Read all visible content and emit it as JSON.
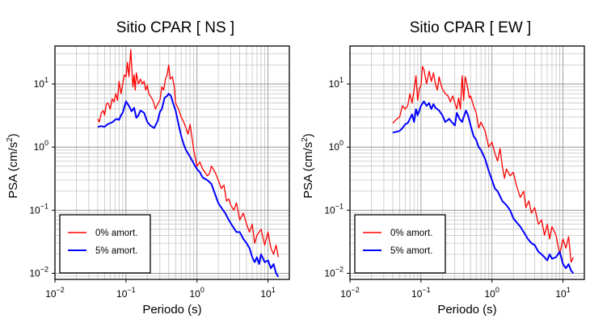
{
  "chart_data": [
    {
      "type": "line",
      "title": "Sitio CPAR [ NS ]",
      "xlabel": "Periodo (s)",
      "ylabel_main": "PSA (cm/s",
      "ylabel_sup": "2",
      "ylabel_tail": ")",
      "xscale": "log",
      "yscale": "log",
      "xlim": [
        0.01,
        20
      ],
      "ylim": [
        0.008,
        40
      ],
      "grid": true,
      "legend_placement": "bottom-left",
      "xticks": [
        {
          "value": 0.01,
          "base": "10",
          "exp": "−2"
        },
        {
          "value": 0.1,
          "base": "10",
          "exp": "−1"
        },
        {
          "value": 1,
          "base": "10",
          "exp": "0"
        },
        {
          "value": 10,
          "base": "10",
          "exp": "1"
        }
      ],
      "yticks": [
        {
          "value": 0.01,
          "base": "10",
          "exp": "−2"
        },
        {
          "value": 0.1,
          "base": "10",
          "exp": "−1"
        },
        {
          "value": 1,
          "base": "10",
          "exp": "0"
        },
        {
          "value": 10,
          "base": "10",
          "exp": "1"
        }
      ],
      "series": [
        {
          "name": "0% amort.",
          "color": "#ff0000",
          "x": [
            0.04,
            0.042,
            0.045,
            0.048,
            0.05,
            0.053,
            0.056,
            0.06,
            0.064,
            0.068,
            0.072,
            0.076,
            0.08,
            0.085,
            0.09,
            0.095,
            0.1,
            0.105,
            0.11,
            0.117,
            0.125,
            0.13,
            0.135,
            0.14,
            0.15,
            0.16,
            0.17,
            0.18,
            0.19,
            0.2,
            0.21,
            0.22,
            0.24,
            0.26,
            0.28,
            0.3,
            0.32,
            0.34,
            0.36,
            0.38,
            0.4,
            0.42,
            0.45,
            0.48,
            0.5,
            0.55,
            0.6,
            0.65,
            0.7,
            0.75,
            0.8,
            0.9,
            1.0,
            1.1,
            1.2,
            1.3,
            1.4,
            1.5,
            1.6,
            1.8,
            2.0,
            2.2,
            2.4,
            2.6,
            2.8,
            3.0,
            3.3,
            3.6,
            4.0,
            4.5,
            5.0,
            5.5,
            6.0,
            6.5,
            7.0,
            8.0,
            9.0,
            10.0,
            11.0,
            12.0,
            13.0,
            14.0
          ],
          "y": [
            2.8,
            2.5,
            3.5,
            3.8,
            3.2,
            4.8,
            5.0,
            4.0,
            5.8,
            5.2,
            7.0,
            5.5,
            11.0,
            7.0,
            10.0,
            14.0,
            13.0,
            22.0,
            13.0,
            35.0,
            9.0,
            14.0,
            8.0,
            15.0,
            10.0,
            12.0,
            10.0,
            11.0,
            8.0,
            9.5,
            7.0,
            6.5,
            5.5,
            4.0,
            4.8,
            5.5,
            9.0,
            8.0,
            12.0,
            14.0,
            20.0,
            12.0,
            13.0,
            9.0,
            5.0,
            4.0,
            3.0,
            2.5,
            2.0,
            1.6,
            2.3,
            0.9,
            0.5,
            0.58,
            0.45,
            0.4,
            0.35,
            0.38,
            0.5,
            0.4,
            0.3,
            0.22,
            0.25,
            0.14,
            0.15,
            0.12,
            0.1,
            0.13,
            0.07,
            0.09,
            0.06,
            0.045,
            0.06,
            0.03,
            0.04,
            0.05,
            0.028,
            0.045,
            0.025,
            0.02,
            0.028,
            0.018
          ]
        },
        {
          "name": "5% amort.",
          "color": "#0000ff",
          "x": [
            0.04,
            0.045,
            0.05,
            0.055,
            0.06,
            0.065,
            0.07,
            0.075,
            0.08,
            0.085,
            0.09,
            0.1,
            0.11,
            0.12,
            0.13,
            0.14,
            0.15,
            0.16,
            0.18,
            0.2,
            0.22,
            0.25,
            0.28,
            0.3,
            0.32,
            0.35,
            0.38,
            0.4,
            0.43,
            0.46,
            0.5,
            0.55,
            0.6,
            0.65,
            0.7,
            0.8,
            0.9,
            1.0,
            1.1,
            1.2,
            1.4,
            1.6,
            1.8,
            2.0,
            2.2,
            2.5,
            2.8,
            3.2,
            3.6,
            4.0,
            4.5,
            5.0,
            5.5,
            6.0,
            6.5,
            7.0,
            7.5,
            8.0,
            9.0,
            10.0,
            11.0,
            12.0,
            13.0,
            14.0
          ],
          "y": [
            2.1,
            2.15,
            2.1,
            2.3,
            2.4,
            2.5,
            2.7,
            2.8,
            2.7,
            3.2,
            3.5,
            5.3,
            4.5,
            3.7,
            4.2,
            2.9,
            3.2,
            3.8,
            3.5,
            2.5,
            2.2,
            2.0,
            2.6,
            3.6,
            4.0,
            6.0,
            6.5,
            7.0,
            6.5,
            5.0,
            3.8,
            2.3,
            1.5,
            1.1,
            0.9,
            0.7,
            0.55,
            0.45,
            0.4,
            0.33,
            0.3,
            0.26,
            0.18,
            0.13,
            0.11,
            0.09,
            0.07,
            0.055,
            0.045,
            0.045,
            0.035,
            0.03,
            0.025,
            0.018,
            0.015,
            0.018,
            0.014,
            0.02,
            0.015,
            0.016,
            0.012,
            0.014,
            0.01,
            0.0088
          ]
        }
      ]
    },
    {
      "type": "line",
      "title": "Sitio CPAR [ EW ]",
      "xlabel": "Periodo (s)",
      "ylabel_main": "PSA (cm/s",
      "ylabel_sup": "2",
      "ylabel_tail": ")",
      "xscale": "log",
      "yscale": "log",
      "xlim": [
        0.01,
        20
      ],
      "ylim": [
        0.008,
        40
      ],
      "grid": true,
      "legend_placement": "bottom-left",
      "xticks": [
        {
          "value": 0.01,
          "base": "10",
          "exp": "−2"
        },
        {
          "value": 0.1,
          "base": "10",
          "exp": "−1"
        },
        {
          "value": 1,
          "base": "10",
          "exp": "0"
        },
        {
          "value": 10,
          "base": "10",
          "exp": "1"
        }
      ],
      "yticks": [
        {
          "value": 0.01,
          "base": "10",
          "exp": "−2"
        },
        {
          "value": 0.1,
          "base": "10",
          "exp": "−1"
        },
        {
          "value": 1,
          "base": "10",
          "exp": "0"
        },
        {
          "value": 10,
          "base": "10",
          "exp": "1"
        }
      ],
      "series": [
        {
          "name": "0% amort.",
          "color": "#ff0000",
          "x": [
            0.04,
            0.043,
            0.046,
            0.05,
            0.055,
            0.06,
            0.065,
            0.07,
            0.075,
            0.08,
            0.085,
            0.09,
            0.095,
            0.1,
            0.105,
            0.11,
            0.12,
            0.13,
            0.14,
            0.15,
            0.16,
            0.17,
            0.18,
            0.19,
            0.2,
            0.22,
            0.24,
            0.26,
            0.28,
            0.3,
            0.32,
            0.34,
            0.36,
            0.38,
            0.4,
            0.42,
            0.44,
            0.46,
            0.48,
            0.5,
            0.55,
            0.6,
            0.65,
            0.7,
            0.8,
            0.9,
            1.0,
            1.1,
            1.2,
            1.3,
            1.4,
            1.5,
            1.6,
            1.8,
            2.0,
            2.2,
            2.5,
            2.8,
            3.0,
            3.3,
            3.6,
            4.0,
            4.5,
            5.0,
            5.5,
            6.0,
            6.5,
            7.0,
            8.0,
            9.0,
            10.0,
            11.0,
            12.0,
            13.0,
            14.0
          ],
          "y": [
            2.4,
            2.6,
            2.8,
            3.0,
            4.5,
            4.0,
            4.5,
            7.0,
            5.0,
            8.0,
            13.5,
            5.5,
            8.5,
            9.5,
            19.0,
            17.0,
            10.0,
            16.0,
            11.0,
            15.0,
            10.0,
            8.0,
            13.0,
            10.0,
            8.5,
            7.0,
            6.5,
            5.2,
            6.5,
            5.0,
            4.0,
            6.0,
            4.0,
            13.5,
            5.5,
            13.0,
            10.5,
            8.0,
            6.0,
            6.5,
            4.5,
            3.5,
            2.0,
            2.5,
            1.8,
            1.0,
            1.2,
            0.8,
            0.6,
            0.95,
            0.5,
            0.32,
            0.45,
            0.35,
            0.4,
            0.25,
            0.16,
            0.2,
            0.11,
            0.14,
            0.09,
            0.11,
            0.06,
            0.07,
            0.04,
            0.06,
            0.035,
            0.055,
            0.04,
            0.02,
            0.035,
            0.025,
            0.038,
            0.015,
            0.018
          ]
        },
        {
          "name": "5% amort.",
          "color": "#0000ff",
          "x": [
            0.04,
            0.045,
            0.05,
            0.055,
            0.06,
            0.065,
            0.07,
            0.075,
            0.08,
            0.085,
            0.09,
            0.1,
            0.11,
            0.12,
            0.13,
            0.14,
            0.15,
            0.16,
            0.18,
            0.2,
            0.22,
            0.25,
            0.28,
            0.3,
            0.32,
            0.35,
            0.38,
            0.4,
            0.43,
            0.46,
            0.5,
            0.55,
            0.6,
            0.65,
            0.7,
            0.8,
            0.9,
            1.0,
            1.1,
            1.2,
            1.4,
            1.6,
            1.8,
            2.0,
            2.2,
            2.5,
            2.8,
            3.2,
            3.6,
            4.0,
            4.5,
            5.0,
            5.5,
            6.0,
            6.5,
            7.0,
            8.0,
            9.0,
            10.0,
            11.0,
            12.0,
            13.0,
            14.0
          ],
          "y": [
            1.7,
            1.75,
            1.8,
            2.0,
            2.3,
            2.4,
            2.8,
            3.3,
            2.5,
            4.0,
            3.2,
            4.5,
            5.3,
            4.5,
            5.0,
            4.0,
            4.8,
            4.2,
            3.8,
            3.2,
            2.5,
            2.8,
            2.4,
            2.2,
            3.5,
            2.8,
            2.5,
            3.0,
            3.8,
            3.2,
            2.2,
            1.5,
            1.3,
            1.0,
            0.9,
            0.65,
            0.42,
            0.3,
            0.22,
            0.2,
            0.14,
            0.12,
            0.1,
            0.075,
            0.065,
            0.055,
            0.045,
            0.035,
            0.03,
            0.028,
            0.022,
            0.02,
            0.018,
            0.016,
            0.02,
            0.017,
            0.018,
            0.022,
            0.014,
            0.012,
            0.014,
            0.011,
            0.01
          ]
        }
      ]
    }
  ]
}
